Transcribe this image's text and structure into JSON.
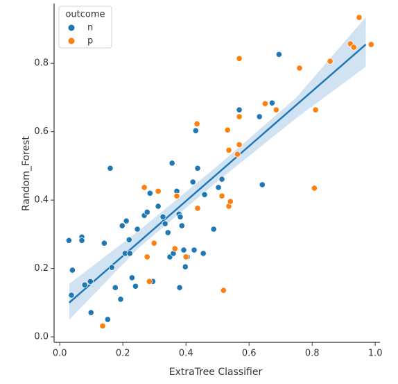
{
  "chart_data": {
    "type": "scatter",
    "x_label": "ExtraTree Classifier",
    "y_label": "Random_Forest",
    "legend_title": "outcome",
    "legend_position": "upper left",
    "xlim": [
      -0.018,
      1.015
    ],
    "ylim": [
      -0.016,
      0.975
    ],
    "xticks": [
      {
        "value": 0,
        "label": "0.0"
      },
      0.2,
      0.4,
      0.6,
      0.8,
      {
        "value": 1,
        "label": "1.0"
      }
    ],
    "yticks": [
      {
        "value": 0,
        "label": "0.0"
      },
      0.2,
      0.4,
      0.6,
      0.8
    ],
    "series": [
      {
        "name": "n",
        "color": "#1f77b4",
        "x": [
          0.029,
          0.04,
          0.037,
          0.07,
          0.07,
          0.079,
          0.097,
          0.099,
          0.141,
          0.152,
          0.16,
          0.165,
          0.176,
          0.193,
          0.198,
          0.207,
          0.211,
          0.22,
          0.222,
          0.229,
          0.24,
          0.246,
          0.268,
          0.277,
          0.286,
          0.295,
          0.312,
          0.327,
          0.334,
          0.343,
          0.349,
          0.356,
          0.36,
          0.371,
          0.378,
          0.382,
          0.387,
          0.38,
          0.393,
          0.398,
          0.404,
          0.422,
          0.426,
          0.431,
          0.437,
          0.455,
          0.459,
          0.488,
          0.503,
          0.514,
          0.569,
          0.633,
          0.642,
          0.673,
          0.695
        ],
        "values": [
          0.282,
          0.195,
          0.122,
          0.292,
          0.282,
          0.152,
          0.162,
          0.071,
          0.274,
          0.051,
          0.493,
          0.203,
          0.144,
          0.11,
          0.325,
          0.244,
          0.339,
          0.284,
          0.244,
          0.173,
          0.148,
          0.315,
          0.355,
          0.365,
          0.42,
          0.162,
          0.382,
          0.351,
          0.331,
          0.305,
          0.234,
          0.508,
          0.244,
          0.426,
          0.359,
          0.351,
          0.325,
          0.144,
          0.254,
          0.205,
          0.234,
          0.453,
          0.254,
          0.603,
          0.493,
          0.244,
          0.416,
          0.315,
          0.437,
          0.461,
          0.664,
          0.644,
          0.445,
          0.684,
          0.826
        ]
      },
      {
        "name": "p",
        "color": "#ff7f0e",
        "x": [
          0.136,
          0.268,
          0.277,
          0.284,
          0.299,
          0.312,
          0.365,
          0.371,
          0.4,
          0.435,
          0.437,
          0.514,
          0.519,
          0.532,
          0.536,
          0.536,
          0.541,
          0.563,
          0.569,
          0.569,
          0.569,
          0.651,
          0.686,
          0.76,
          0.807,
          0.811,
          0.857,
          0.921,
          0.932,
          0.949,
          0.987
        ],
        "values": [
          0.032,
          0.437,
          0.234,
          0.162,
          0.274,
          0.426,
          0.258,
          0.412,
          0.234,
          0.623,
          0.376,
          0.412,
          0.136,
          0.605,
          0.546,
          0.382,
          0.396,
          0.534,
          0.562,
          0.644,
          0.814,
          0.682,
          0.664,
          0.786,
          0.435,
          0.664,
          0.806,
          0.857,
          0.847,
          0.934,
          0.855
        ]
      }
    ],
    "regression": {
      "color": "#1f77b4",
      "x": [
        0.03,
        0.97
      ],
      "values": [
        0.1,
        0.855
      ]
    },
    "band": {
      "color": "#c6dbef",
      "x": [
        0.03,
        0.25,
        0.5,
        0.75,
        0.97
      ],
      "lower": [
        0.05,
        0.26,
        0.455,
        0.64,
        0.79
      ],
      "upper": [
        0.155,
        0.31,
        0.5,
        0.7,
        0.935
      ]
    }
  }
}
